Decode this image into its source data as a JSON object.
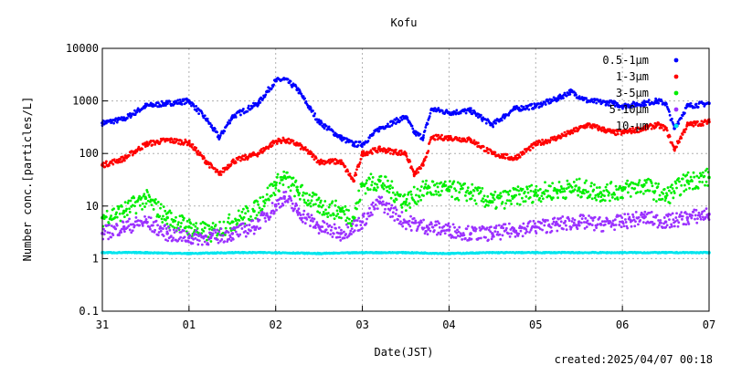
{
  "chart_data": {
    "type": "scatter",
    "title": "Kofu",
    "xlabel": "Date(JST)",
    "ylabel": "Number conc.[particles/L]",
    "y_scale": "log",
    "ylim": [
      0.1,
      10000
    ],
    "y_ticks": [
      "0.1",
      "1",
      "10",
      "100",
      "1000",
      "10000"
    ],
    "x_unit": "day",
    "xlim": [
      0,
      7
    ],
    "x_ticks": [
      "31",
      "01",
      "02",
      "03",
      "04",
      "05",
      "06",
      "07"
    ],
    "grid": true,
    "legend_position": "top-right",
    "footer": "created:2025/04/07 00:18",
    "series": [
      {
        "name": "0.5-1μm",
        "color": "#0000ff",
        "x": [
          0,
          0.25,
          0.5,
          0.75,
          1.0,
          1.2,
          1.35,
          1.5,
          1.8,
          1.9,
          2.0,
          2.1,
          2.25,
          2.4,
          2.5,
          2.75,
          2.9,
          3.0,
          3.2,
          3.5,
          3.6,
          3.7,
          3.8,
          4.0,
          4.25,
          4.5,
          4.75,
          5.0,
          5.25,
          5.4,
          5.6,
          5.9,
          6.0,
          6.25,
          6.4,
          6.5,
          6.6,
          6.75,
          7.0
        ],
        "values": [
          380,
          450,
          800,
          900,
          1000,
          450,
          200,
          500,
          900,
          1500,
          2400,
          2600,
          1700,
          700,
          400,
          200,
          150,
          150,
          300,
          500,
          250,
          200,
          700,
          600,
          650,
          350,
          700,
          800,
          1100,
          1500,
          1000,
          900,
          800,
          900,
          1000,
          900,
          300,
          800,
          900
        ]
      },
      {
        "name": "1-3μm",
        "color": "#ff0000",
        "x": [
          0,
          0.25,
          0.5,
          0.75,
          1.0,
          1.2,
          1.35,
          1.5,
          1.8,
          2.0,
          2.1,
          2.25,
          2.4,
          2.5,
          2.75,
          2.9,
          3.0,
          3.2,
          3.5,
          3.6,
          3.7,
          3.8,
          4.0,
          4.25,
          4.5,
          4.75,
          5.0,
          5.25,
          5.4,
          5.6,
          5.9,
          6.0,
          6.25,
          6.4,
          6.5,
          6.6,
          6.75,
          7.0
        ],
        "values": [
          60,
          80,
          150,
          180,
          160,
          70,
          40,
          70,
          100,
          170,
          180,
          150,
          100,
          70,
          70,
          30,
          100,
          120,
          100,
          40,
          60,
          200,
          200,
          180,
          100,
          80,
          150,
          200,
          250,
          350,
          250,
          250,
          300,
          350,
          300,
          120,
          350,
          400
        ]
      },
      {
        "name": "3-5μm",
        "color": "#00ee00",
        "x": [
          0,
          0.25,
          0.5,
          0.75,
          1.0,
          1.25,
          1.5,
          1.75,
          2.0,
          2.1,
          2.25,
          2.5,
          2.75,
          2.9,
          3.0,
          3.2,
          3.5,
          3.75,
          4.0,
          4.25,
          4.5,
          4.75,
          5.0,
          5.25,
          5.5,
          5.75,
          6.0,
          6.25,
          6.5,
          6.75,
          7.0
        ],
        "values": [
          6,
          8,
          14,
          6,
          4,
          3,
          5,
          8,
          25,
          35,
          20,
          10,
          8,
          6,
          25,
          30,
          12,
          22,
          20,
          18,
          12,
          15,
          18,
          20,
          22,
          18,
          20,
          25,
          15,
          30,
          35
        ]
      },
      {
        "name": "5-10μm",
        "color": "#9b30ff",
        "x": [
          0,
          0.25,
          0.5,
          0.75,
          1.0,
          1.25,
          1.5,
          1.75,
          2.0,
          2.1,
          2.25,
          2.5,
          2.75,
          3.0,
          3.2,
          3.5,
          3.75,
          4.0,
          4.25,
          4.5,
          4.75,
          5.0,
          5.25,
          5.5,
          5.75,
          6.0,
          6.25,
          6.5,
          6.75,
          7.0
        ],
        "values": [
          3,
          4,
          5,
          3,
          2.5,
          2.5,
          3,
          4,
          10,
          15,
          8,
          4,
          3,
          5,
          12,
          5,
          4,
          3.5,
          3,
          3,
          3.5,
          4,
          4.5,
          5,
          4.5,
          5,
          6,
          5,
          6,
          7
        ]
      },
      {
        "name": "10-μm",
        "color": "#00e5ee",
        "x": [
          0,
          0.5,
          1.0,
          1.5,
          2.0,
          2.5,
          3.0,
          3.5,
          4.0,
          4.5,
          5.0,
          5.5,
          6.0,
          6.5,
          7.0
        ],
        "values": [
          1.3,
          1.3,
          1.25,
          1.3,
          1.3,
          1.25,
          1.3,
          1.3,
          1.25,
          1.3,
          1.3,
          1.3,
          1.3,
          1.3,
          1.3
        ]
      }
    ]
  }
}
